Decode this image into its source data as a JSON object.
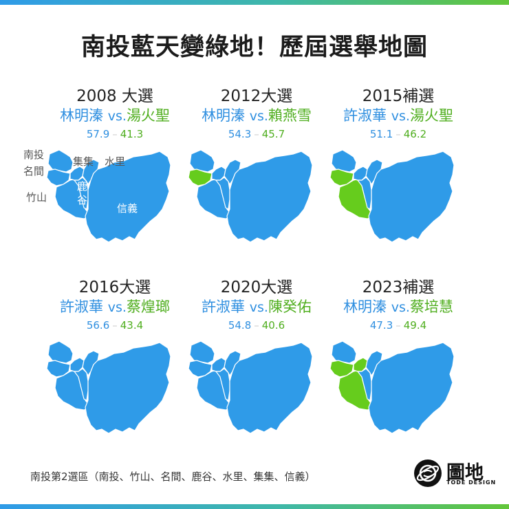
{
  "title": "南投藍天變綠地！歷屆選舉地圖",
  "colors": {
    "kmt_blue": "#2f9be8",
    "dpp_green": "#66cc1d",
    "border": "#ffffff"
  },
  "panels": [
    {
      "year": "2008 大選",
      "blue_name": "林明溱",
      "vs": "vs.",
      "green_name": "湯火聖",
      "blue_score": "57.9",
      "green_score": "41.3",
      "green_townships": []
    },
    {
      "year": "2012大選",
      "blue_name": "林明溱",
      "vs": "vs.",
      "green_name": "賴燕雪",
      "blue_score": "54.3",
      "green_score": "45.7",
      "green_townships": [
        "名間"
      ]
    },
    {
      "year": "2015補選",
      "blue_name": "許淑華",
      "vs": "vs.",
      "green_name": "湯火聖",
      "blue_score": "51.1",
      "green_score": "46.2",
      "green_townships": [
        "名間",
        "竹山"
      ]
    },
    {
      "year": "2016大選",
      "blue_name": "許淑華",
      "vs": "vs.",
      "green_name": "蔡煌瑯",
      "blue_score": "56.6",
      "green_score": "43.4",
      "green_townships": []
    },
    {
      "year": "2020大選",
      "blue_name": "許淑華",
      "vs": "vs.",
      "green_name": "陳癸佑",
      "blue_score": "54.8",
      "green_score": "40.6",
      "green_townships": []
    },
    {
      "year": "2023補選",
      "blue_name": "林明溱",
      "vs": "vs.",
      "green_name": "蔡培慧",
      "blue_score": "47.3",
      "green_score": "49.4",
      "green_townships": [
        "名間",
        "竹山",
        "集集"
      ]
    }
  ],
  "township_labels": {
    "nantou": "南投",
    "mingjian": "名間",
    "zhushan": "竹山",
    "jiji": "集集",
    "shuili": "水里",
    "lugu_1": "鹿",
    "lugu_2": "谷",
    "xinyi": "信義"
  },
  "footer": "南投第2選區（南投、竹山、名間、鹿谷、水里、集集、信義）",
  "logo": {
    "text": "圖地",
    "sub": "TODE DESIGN",
    "icon": "globe-planet-icon"
  }
}
